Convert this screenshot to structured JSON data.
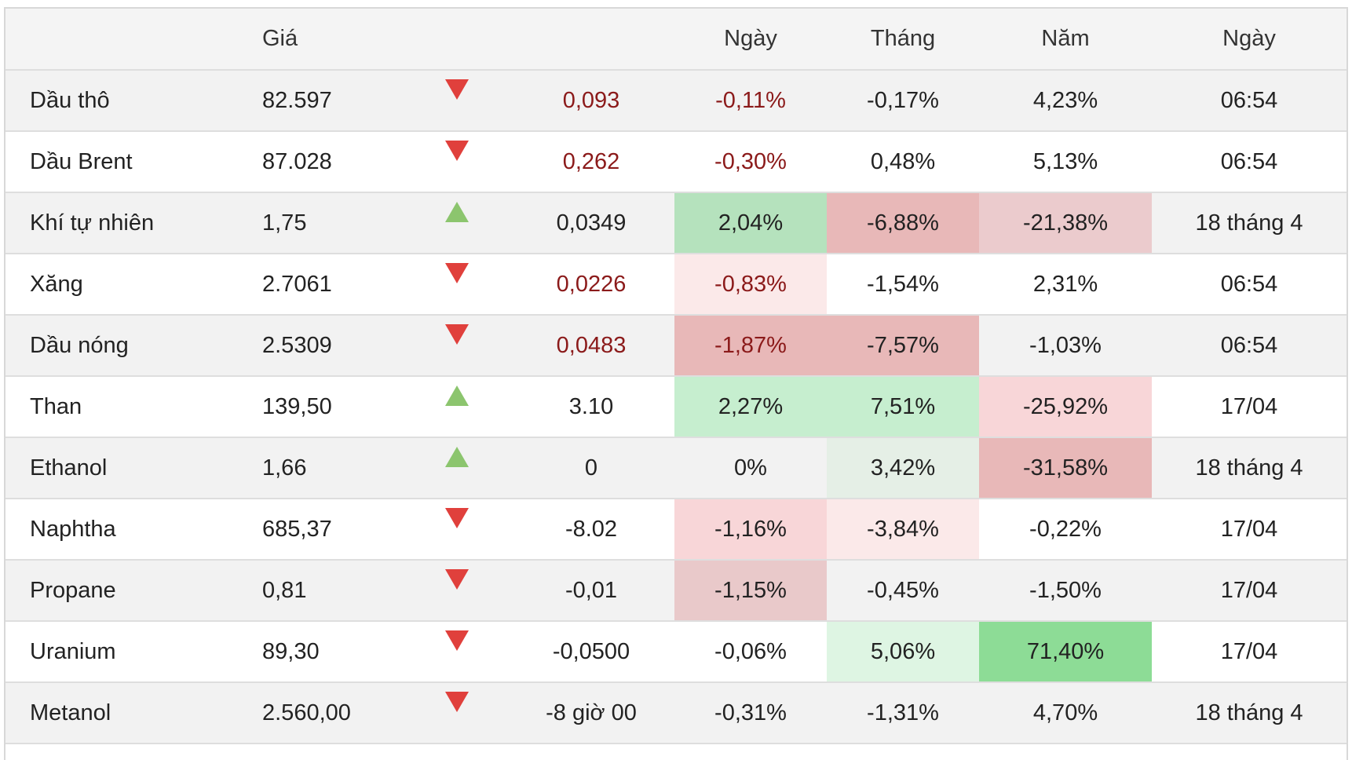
{
  "header": {
    "col_name": "",
    "col_price": "Giá",
    "col_arrow": "",
    "col_change": "",
    "col_day": "Ngày",
    "col_month": "Tháng",
    "col_year": "Năm",
    "col_time": "Ngày"
  },
  "rows": [
    {
      "name": "Dầu thô",
      "price": "82.597",
      "direction": "down",
      "change": "0,093",
      "day": "-0,11%",
      "month": "-0,17%",
      "year": "4,23%",
      "time": "06:54"
    },
    {
      "name": "Dầu Brent",
      "price": "87.028",
      "direction": "down",
      "change": "0,262",
      "day": "-0,30%",
      "month": "0,48%",
      "year": "5,13%",
      "time": "06:54"
    },
    {
      "name": "Khí tự nhiên",
      "price": "1,75",
      "direction": "up",
      "change": "0,0349",
      "day": "2,04%",
      "month": "-6,88%",
      "year": "-21,38%",
      "time": "18 tháng 4"
    },
    {
      "name": "Xăng",
      "price": "2.7061",
      "direction": "down",
      "change": "0,0226",
      "day": "-0,83%",
      "month": "-1,54%",
      "year": "2,31%",
      "time": "06:54"
    },
    {
      "name": "Dầu nóng",
      "price": "2.5309",
      "direction": "down",
      "change": "0,0483",
      "day": "-1,87%",
      "month": "-7,57%",
      "year": "-1,03%",
      "time": "06:54"
    },
    {
      "name": "Than",
      "price": "139,50",
      "direction": "up",
      "change": "3.10",
      "day": "2,27%",
      "month": "7,51%",
      "year": "-25,92%",
      "time": "17/04"
    },
    {
      "name": "Ethanol",
      "price": "1,66",
      "direction": "up",
      "change": "0",
      "day": "0%",
      "month": "3,42%",
      "year": "-31,58%",
      "time": "18 tháng 4"
    },
    {
      "name": "Naphtha",
      "price": "685,37",
      "direction": "down",
      "change": "-8.02",
      "day": "-1,16%",
      "month": "-3,84%",
      "year": "-0,22%",
      "time": "17/04"
    },
    {
      "name": "Propane",
      "price": "0,81",
      "direction": "down",
      "change": "-0,01",
      "day": "-1,15%",
      "month": "-0,45%",
      "year": "-1,50%",
      "time": "17/04"
    },
    {
      "name": "Uranium",
      "price": "89,30",
      "direction": "down",
      "change": "-0,0500",
      "day": "-0,06%",
      "month": "5,06%",
      "year": "71,40%",
      "time": "17/04"
    },
    {
      "name": "Metanol",
      "price": "2.560,00",
      "direction": "down",
      "change": "-8 giờ 00",
      "day": "-0,31%",
      "month": "-1,31%",
      "year": "4,70%",
      "time": "18 tháng 4"
    }
  ],
  "colors": {
    "negative_text": "#8b1a1a",
    "arrow_down": "#e0403c",
    "arrow_up": "#8cc56e"
  }
}
